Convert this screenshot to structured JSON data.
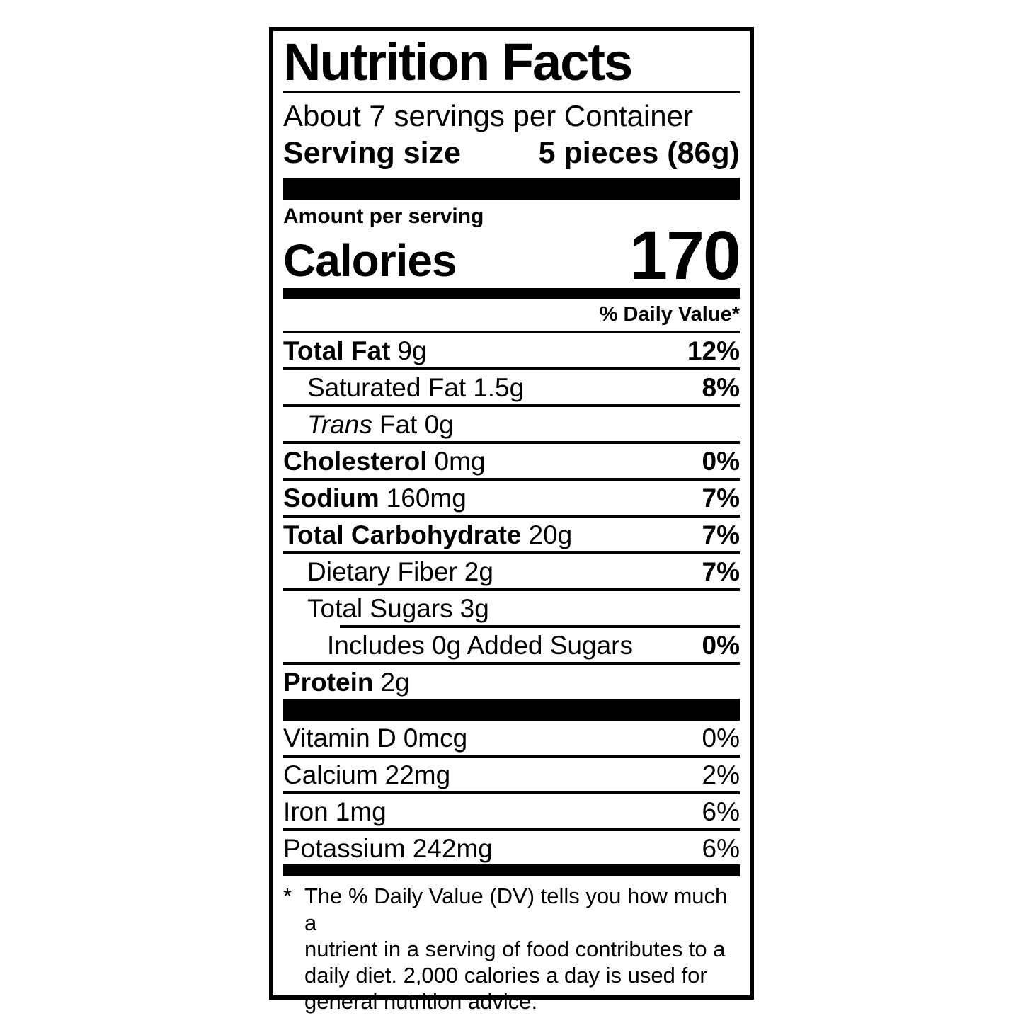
{
  "colors": {
    "ink": "#000000",
    "paper": "#ffffff"
  },
  "label": {
    "title": "Nutrition Facts",
    "servings_per_container": "About 7 servings per Container",
    "serving_size_label": "Serving size",
    "serving_size_value": "5 pieces (86g)",
    "amount_per_serving": "Amount per serving",
    "calories_label": "Calories",
    "calories_value": "170",
    "daily_value_header": "% Daily Value*",
    "rows": [
      {
        "name": "Total Fat",
        "amount": "9g",
        "dv": "12%"
      },
      {
        "name": "Saturated Fat",
        "amount": "1.5g",
        "dv": "8%"
      },
      {
        "name": "Trans",
        "amount": "Fat 0g",
        "dv": ""
      },
      {
        "name": "Cholesterol",
        "amount": "0mg",
        "dv": "0%"
      },
      {
        "name": "Sodium",
        "amount": "160mg",
        "dv": "7%"
      },
      {
        "name": "Total Carbohydrate",
        "amount": "20g",
        "dv": "7%"
      },
      {
        "name": "Dietary Fiber",
        "amount": "2g",
        "dv": "7%"
      },
      {
        "name": "Total Sugars",
        "amount": "3g",
        "dv": ""
      },
      {
        "name": "Includes 0g Added Sugars",
        "amount": "",
        "dv": "0%"
      },
      {
        "name": "Protein",
        "amount": "2g",
        "dv": ""
      }
    ],
    "micronutrients": [
      {
        "name": "Vitamin D",
        "amount": "0mcg",
        "dv": "0%"
      },
      {
        "name": "Calcium",
        "amount": "22mg",
        "dv": "2%"
      },
      {
        "name": "Iron",
        "amount": "1mg",
        "dv": "6%"
      },
      {
        "name": "Potassium",
        "amount": "242mg",
        "dv": "6%"
      }
    ],
    "footnote": {
      "marker": "*",
      "lines": [
        "The % Daily Value (DV) tells you how much a",
        "nutrient in a serving of food contributes to a",
        "daily diet. 2,000 calories a day is used for",
        "general nutrition advice."
      ]
    }
  }
}
